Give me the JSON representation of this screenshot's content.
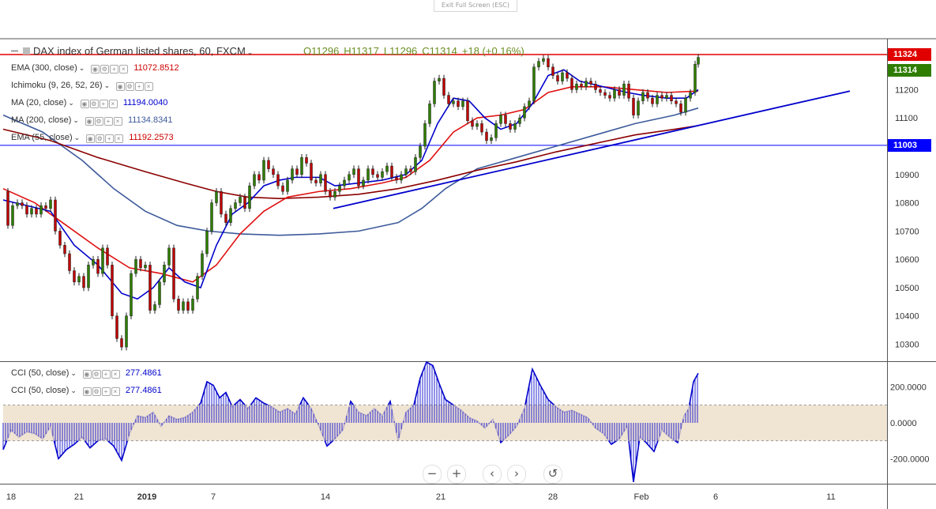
{
  "window": {
    "exit_fullscreen": "Exit Full Screen (ESC)"
  },
  "header": {
    "title": "DAX index of German listed shares, 60, FXCM",
    "ohlc": {
      "open": "O11296",
      "high": "H11317",
      "low": "L11296",
      "close": "C11314",
      "change": "+18 (+0.16%)"
    }
  },
  "legend": [
    {
      "name": "EMA (300, close)",
      "value": "11072.8512",
      "color": "#cc0000"
    },
    {
      "name": "Ichimoku (9, 26, 52, 26)",
      "value": "",
      "color": "#333333"
    },
    {
      "name": "MA (20, close)",
      "value": "11194.0040",
      "color": "#0000cc"
    },
    {
      "name": "MA (200, close)",
      "value": "11134.8341",
      "color": "#3d5a9a"
    },
    {
      "name": "EMA (55, close)",
      "value": "11192.2573",
      "color": "#cc0000"
    }
  ],
  "cci_legend": [
    {
      "name": "CCI (50, close)",
      "value": "277.4861",
      "color": "#0000cc"
    },
    {
      "name": "CCI (50, close)",
      "value": "277.4861",
      "color": "#0000cc"
    }
  ],
  "price_tags": [
    {
      "value": "11324",
      "color": "#e00000"
    },
    {
      "value": "11314",
      "color": "#2e7d00"
    },
    {
      "value": "11003",
      "color": "#0000ff"
    }
  ],
  "nav_buttons": [
    "−",
    "+",
    "‹",
    "›",
    "↺"
  ],
  "colors": {
    "up": "#2e7d00",
    "down": "#c00000",
    "ma20": "#0000cc",
    "ema55": "#e01010",
    "ema300": "#8b0000",
    "ma200": "#3d5a9a",
    "trend": "#0000cc",
    "cci": "#0000cc",
    "band": "#ecdfc8"
  },
  "chart_data": {
    "type": "line",
    "title": "DAX index of German listed shares, 60, FXCM",
    "x_ticks": [
      "18",
      "21",
      "2019",
      "7",
      "14",
      "21",
      "28",
      "Feb",
      "6",
      "11"
    ],
    "y_ticks": [
      "11200",
      "11100",
      "11000",
      "10900",
      "10800",
      "10700",
      "10600",
      "10500",
      "10400",
      "10300"
    ],
    "ylim": [
      10240,
      11380
    ],
    "horizontal_lines": [
      {
        "value": 11324,
        "label": "11324",
        "color": "#e00000"
      },
      {
        "value": 11003,
        "label": "11003",
        "color": "#0000ff"
      }
    ],
    "last_close": 11314,
    "price_path": [
      [
        0,
        10840
      ],
      [
        6,
        10720
      ],
      [
        12,
        10790
      ],
      [
        18,
        10800
      ],
      [
        24,
        10790
      ],
      [
        30,
        10760
      ],
      [
        36,
        10780
      ],
      [
        42,
        10760
      ],
      [
        48,
        10790
      ],
      [
        54,
        10780
      ],
      [
        60,
        10810
      ],
      [
        66,
        10700
      ],
      [
        72,
        10650
      ],
      [
        78,
        10620
      ],
      [
        84,
        10560
      ],
      [
        90,
        10520
      ],
      [
        96,
        10540
      ],
      [
        102,
        10500
      ],
      [
        108,
        10580
      ],
      [
        114,
        10600
      ],
      [
        120,
        10550
      ],
      [
        126,
        10640
      ],
      [
        132,
        10580
      ],
      [
        138,
        10400
      ],
      [
        144,
        10320
      ],
      [
        150,
        10290
      ],
      [
        156,
        10400
      ],
      [
        162,
        10550
      ],
      [
        168,
        10600
      ],
      [
        174,
        10570
      ],
      [
        180,
        10580
      ],
      [
        186,
        10420
      ],
      [
        192,
        10440
      ],
      [
        198,
        10520
      ],
      [
        204,
        10580
      ],
      [
        210,
        10640
      ],
      [
        216,
        10460
      ],
      [
        222,
        10420
      ],
      [
        228,
        10450
      ],
      [
        234,
        10420
      ],
      [
        240,
        10460
      ],
      [
        246,
        10540
      ],
      [
        252,
        10620
      ],
      [
        258,
        10700
      ],
      [
        264,
        10800
      ],
      [
        270,
        10840
      ],
      [
        276,
        10760
      ],
      [
        282,
        10730
      ],
      [
        288,
        10780
      ],
      [
        294,
        10800
      ],
      [
        300,
        10820
      ],
      [
        306,
        10780
      ],
      [
        312,
        10860
      ],
      [
        318,
        10900
      ],
      [
        324,
        10880
      ],
      [
        330,
        10950
      ],
      [
        336,
        10920
      ],
      [
        342,
        10900
      ],
      [
        348,
        10860
      ],
      [
        354,
        10840
      ],
      [
        360,
        10880
      ],
      [
        366,
        10920
      ],
      [
        372,
        10900
      ],
      [
        378,
        10960
      ],
      [
        384,
        10940
      ],
      [
        390,
        10880
      ],
      [
        396,
        10870
      ],
      [
        402,
        10900
      ],
      [
        408,
        10840
      ],
      [
        414,
        10820
      ],
      [
        420,
        10840
      ],
      [
        426,
        10860
      ],
      [
        432,
        10880
      ],
      [
        438,
        10900
      ],
      [
        444,
        10920
      ],
      [
        450,
        10860
      ],
      [
        456,
        10880
      ],
      [
        462,
        10920
      ],
      [
        468,
        10900
      ],
      [
        474,
        10890
      ],
      [
        480,
        10910
      ],
      [
        486,
        10930
      ],
      [
        492,
        10890
      ],
      [
        498,
        10880
      ],
      [
        504,
        10900
      ],
      [
        510,
        10920
      ],
      [
        516,
        10910
      ],
      [
        522,
        10960
      ],
      [
        528,
        11000
      ],
      [
        534,
        11080
      ],
      [
        540,
        11150
      ],
      [
        546,
        11230
      ],
      [
        552,
        11240
      ],
      [
        558,
        11180
      ],
      [
        564,
        11150
      ],
      [
        570,
        11160
      ],
      [
        576,
        11140
      ],
      [
        582,
        11160
      ],
      [
        588,
        11090
      ],
      [
        594,
        11070
      ],
      [
        600,
        11080
      ],
      [
        606,
        11050
      ],
      [
        612,
        11020
      ],
      [
        618,
        11030
      ],
      [
        624,
        11080
      ],
      [
        630,
        11110
      ],
      [
        636,
        11080
      ],
      [
        642,
        11060
      ],
      [
        648,
        11080
      ],
      [
        654,
        11100
      ],
      [
        660,
        11140
      ],
      [
        666,
        11160
      ],
      [
        672,
        11280
      ],
      [
        678,
        11300
      ],
      [
        684,
        11310
      ],
      [
        690,
        11280
      ],
      [
        696,
        11250
      ],
      [
        702,
        11230
      ],
      [
        708,
        11260
      ],
      [
        714,
        11240
      ],
      [
        720,
        11200
      ],
      [
        726,
        11220
      ],
      [
        732,
        11210
      ],
      [
        738,
        11230
      ],
      [
        744,
        11220
      ],
      [
        750,
        11200
      ],
      [
        756,
        11190
      ],
      [
        762,
        11180
      ],
      [
        768,
        11170
      ],
      [
        774,
        11200
      ],
      [
        780,
        11180
      ],
      [
        786,
        11220
      ],
      [
        792,
        11170
      ],
      [
        798,
        11110
      ],
      [
        804,
        11160
      ],
      [
        810,
        11190
      ],
      [
        816,
        11170
      ],
      [
        822,
        11150
      ],
      [
        828,
        11180
      ],
      [
        834,
        11170
      ],
      [
        840,
        11180
      ],
      [
        846,
        11160
      ],
      [
        852,
        11150
      ],
      [
        858,
        11120
      ],
      [
        864,
        11170
      ],
      [
        870,
        11190
      ],
      [
        876,
        11290
      ],
      [
        880,
        11314
      ]
    ],
    "ma20_path": [
      [
        0,
        10810
      ],
      [
        30,
        10790
      ],
      [
        60,
        10770
      ],
      [
        90,
        10650
      ],
      [
        120,
        10580
      ],
      [
        150,
        10480
      ],
      [
        170,
        10460
      ],
      [
        190,
        10500
      ],
      [
        210,
        10570
      ],
      [
        230,
        10520
      ],
      [
        250,
        10500
      ],
      [
        270,
        10650
      ],
      [
        290,
        10760
      ],
      [
        310,
        10800
      ],
      [
        330,
        10860
      ],
      [
        350,
        10880
      ],
      [
        370,
        10890
      ],
      [
        400,
        10890
      ],
      [
        420,
        10860
      ],
      [
        450,
        10870
      ],
      [
        480,
        10880
      ],
      [
        510,
        10900
      ],
      [
        530,
        10950
      ],
      [
        550,
        11080
      ],
      [
        570,
        11170
      ],
      [
        590,
        11160
      ],
      [
        610,
        11100
      ],
      [
        630,
        11060
      ],
      [
        650,
        11080
      ],
      [
        670,
        11150
      ],
      [
        690,
        11250
      ],
      [
        710,
        11270
      ],
      [
        730,
        11230
      ],
      [
        760,
        11210
      ],
      [
        790,
        11190
      ],
      [
        810,
        11180
      ],
      [
        840,
        11170
      ],
      [
        865,
        11170
      ],
      [
        880,
        11200
      ]
    ],
    "ema55_path": [
      [
        0,
        10850
      ],
      [
        40,
        10800
      ],
      [
        80,
        10720
      ],
      [
        120,
        10640
      ],
      [
        160,
        10570
      ],
      [
        200,
        10550
      ],
      [
        240,
        10520
      ],
      [
        270,
        10580
      ],
      [
        300,
        10690
      ],
      [
        330,
        10770
      ],
      [
        360,
        10820
      ],
      [
        400,
        10840
      ],
      [
        440,
        10850
      ],
      [
        480,
        10870
      ],
      [
        510,
        10890
      ],
      [
        540,
        10950
      ],
      [
        570,
        11050
      ],
      [
        600,
        11100
      ],
      [
        630,
        11110
      ],
      [
        660,
        11130
      ],
      [
        690,
        11190
      ],
      [
        720,
        11210
      ],
      [
        760,
        11210
      ],
      [
        800,
        11200
      ],
      [
        840,
        11190
      ],
      [
        880,
        11195
      ]
    ],
    "ema300_path": [
      [
        0,
        11060
      ],
      [
        60,
        11020
      ],
      [
        120,
        10960
      ],
      [
        180,
        10910
      ],
      [
        230,
        10870
      ],
      [
        270,
        10840
      ],
      [
        310,
        10820
      ],
      [
        350,
        10815
      ],
      [
        400,
        10820
      ],
      [
        450,
        10830
      ],
      [
        500,
        10850
      ],
      [
        550,
        10880
      ],
      [
        600,
        10915
      ],
      [
        650,
        10945
      ],
      [
        700,
        10980
      ],
      [
        750,
        11010
      ],
      [
        800,
        11040
      ],
      [
        850,
        11060
      ],
      [
        880,
        11073
      ]
    ],
    "ma200_path": [
      [
        0,
        11110
      ],
      [
        50,
        11050
      ],
      [
        100,
        10950
      ],
      [
        140,
        10850
      ],
      [
        180,
        10770
      ],
      [
        220,
        10720
      ],
      [
        260,
        10700
      ],
      [
        300,
        10690
      ],
      [
        350,
        10685
      ],
      [
        400,
        10690
      ],
      [
        450,
        10700
      ],
      [
        500,
        10730
      ],
      [
        530,
        10780
      ],
      [
        560,
        10850
      ],
      [
        600,
        10920
      ],
      [
        650,
        10960
      ],
      [
        700,
        11000
      ],
      [
        750,
        11040
      ],
      [
        800,
        11080
      ],
      [
        850,
        11110
      ],
      [
        880,
        11135
      ]
    ],
    "trendline": [
      [
        418,
        10780
      ],
      [
        1072,
        11195
      ]
    ],
    "cci": {
      "title": "CCI (50, close)",
      "y_ticks": [
        "200.0000",
        "0.0000",
        "-200.0000"
      ],
      "ylim": [
        -340,
        340
      ],
      "upper_band": 100,
      "lower_band": -100,
      "last": 277.4861,
      "path": [
        [
          0,
          -150
        ],
        [
          10,
          -40
        ],
        [
          20,
          -80
        ],
        [
          30,
          -50
        ],
        [
          40,
          -60
        ],
        [
          50,
          -90
        ],
        [
          60,
          -20
        ],
        [
          70,
          -200
        ],
        [
          80,
          -150
        ],
        [
          90,
          -120
        ],
        [
          100,
          -80
        ],
        [
          110,
          -140
        ],
        [
          120,
          -100
        ],
        [
          130,
          -90
        ],
        [
          140,
          -130
        ],
        [
          150,
          -210
        ],
        [
          160,
          -60
        ],
        [
          170,
          40
        ],
        [
          180,
          30
        ],
        [
          190,
          60
        ],
        [
          200,
          -20
        ],
        [
          210,
          40
        ],
        [
          220,
          20
        ],
        [
          230,
          30
        ],
        [
          240,
          60
        ],
        [
          250,
          110
        ],
        [
          258,
          230
        ],
        [
          266,
          210
        ],
        [
          274,
          140
        ],
        [
          282,
          170
        ],
        [
          290,
          90
        ],
        [
          300,
          130
        ],
        [
          310,
          80
        ],
        [
          320,
          140
        ],
        [
          330,
          110
        ],
        [
          340,
          90
        ],
        [
          350,
          60
        ],
        [
          360,
          80
        ],
        [
          370,
          50
        ],
        [
          380,
          140
        ],
        [
          390,
          80
        ],
        [
          400,
          -20
        ],
        [
          410,
          -130
        ],
        [
          420,
          -90
        ],
        [
          430,
          -40
        ],
        [
          440,
          120
        ],
        [
          450,
          60
        ],
        [
          460,
          40
        ],
        [
          470,
          80
        ],
        [
          480,
          40
        ],
        [
          490,
          120
        ],
        [
          500,
          -100
        ],
        [
          510,
          60
        ],
        [
          520,
          100
        ],
        [
          528,
          250
        ],
        [
          536,
          340
        ],
        [
          544,
          320
        ],
        [
          552,
          220
        ],
        [
          560,
          130
        ],
        [
          570,
          100
        ],
        [
          580,
          70
        ],
        [
          590,
          30
        ],
        [
          600,
          10
        ],
        [
          610,
          -30
        ],
        [
          620,
          20
        ],
        [
          630,
          -110
        ],
        [
          640,
          -70
        ],
        [
          650,
          -20
        ],
        [
          660,
          80
        ],
        [
          670,
          300
        ],
        [
          680,
          210
        ],
        [
          690,
          130
        ],
        [
          700,
          90
        ],
        [
          710,
          60
        ],
        [
          720,
          70
        ],
        [
          730,
          50
        ],
        [
          740,
          30
        ],
        [
          750,
          -30
        ],
        [
          760,
          -60
        ],
        [
          770,
          -120
        ],
        [
          780,
          -90
        ],
        [
          790,
          -20
        ],
        [
          798,
          -330
        ],
        [
          806,
          -80
        ],
        [
          814,
          -110
        ],
        [
          824,
          -160
        ],
        [
          834,
          -40
        ],
        [
          844,
          -80
        ],
        [
          854,
          -110
        ],
        [
          862,
          40
        ],
        [
          868,
          80
        ],
        [
          874,
          230
        ],
        [
          880,
          277
        ]
      ]
    }
  }
}
